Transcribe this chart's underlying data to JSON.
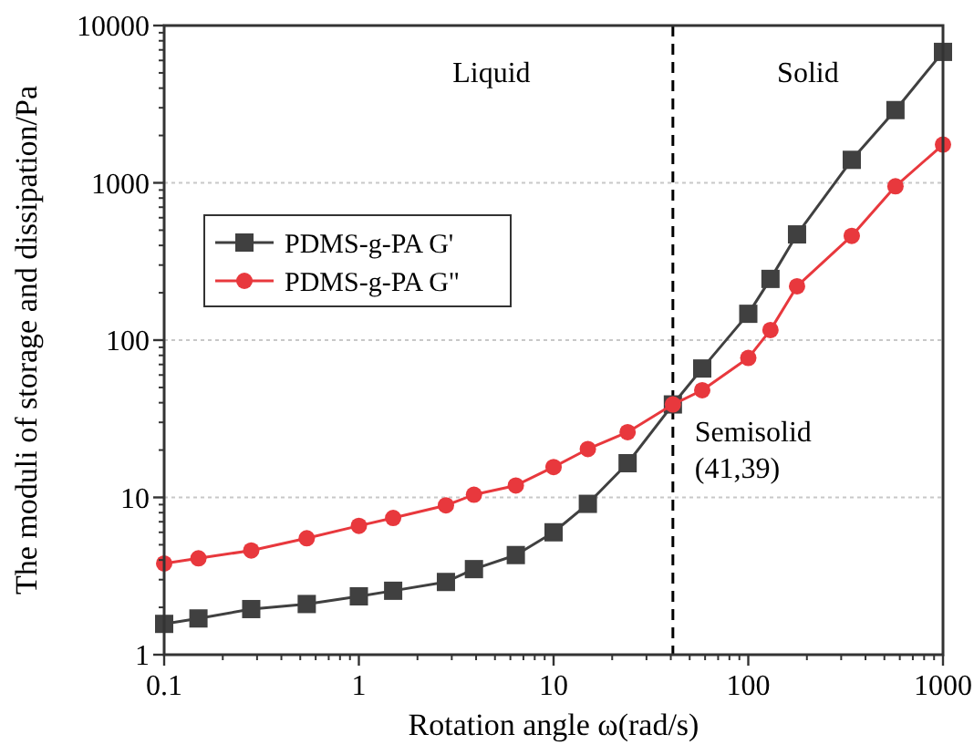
{
  "chart_data": {
    "type": "line",
    "xlabel": "Rotation angle ω(rad/s)",
    "ylabel": "The moduli of storage and dissipation/Pa",
    "log": "xy",
    "xlim": [
      0.1,
      1000
    ],
    "ylim": [
      1,
      10000
    ],
    "xticks": [
      0.1,
      1,
      10,
      100,
      1000
    ],
    "yticks": [
      1,
      10,
      100,
      1000,
      10000
    ],
    "grid": "y",
    "legend": "top left",
    "line_style": "solid",
    "x": [
      0.1,
      0.15,
      0.28,
      0.54,
      1,
      1.5,
      2.8,
      3.9,
      6.4,
      10,
      15,
      24,
      41,
      58,
      100,
      130,
      178,
      340,
      570,
      1000
    ],
    "series": [
      {
        "name": "PDMS-g-PA G'",
        "color": "#404040",
        "marker": "square",
        "values": [
          1.57,
          1.7,
          1.95,
          2.1,
          2.35,
          2.55,
          2.9,
          3.5,
          4.3,
          6,
          9.1,
          16.5,
          39,
          66,
          147,
          245,
          470,
          1400,
          2900,
          6800
        ]
      },
      {
        "name": "PDMS-g-PA G\"",
        "color": "#e8383d",
        "marker": "circle",
        "values": [
          3.8,
          4.1,
          4.6,
          5.5,
          6.6,
          7.4,
          8.9,
          10.4,
          11.9,
          15.6,
          20.3,
          26,
          39,
          48,
          77,
          116,
          220,
          460,
          950,
          1750
        ]
      }
    ],
    "ref_lines": [
      {
        "axis": "x",
        "value": 41,
        "line_style": "dashed",
        "color": "#000000"
      }
    ],
    "annotations": [
      "Liquid",
      "Solid",
      {
        "text": "Semisolid\n(41,39)",
        "x": 41,
        "y": 39
      }
    ]
  }
}
